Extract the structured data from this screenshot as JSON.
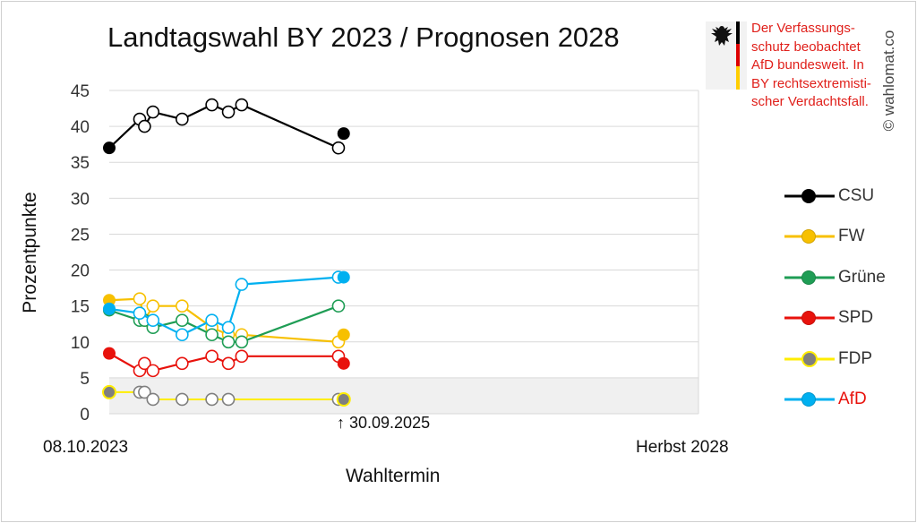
{
  "title": "Landtagswahl BY 2023 / Prognosen 2028",
  "chart_data": {
    "type": "line",
    "title": "Landtagswahl BY 2023 / Prognosen 2028",
    "xlabel": "Wahltermin",
    "ylabel": "Prozentpunkte",
    "ylim": [
      0,
      45
    ],
    "yticks": [
      "0",
      "5",
      "10",
      "15",
      "20",
      "25",
      "30",
      "35",
      "40",
      "45"
    ],
    "x_range": [
      "2023-10-08",
      "2028-10-01"
    ],
    "x_start_label": "08.10.2023",
    "x_end_label": "Herbst 2028",
    "grid": true,
    "shaded_band": [
      0,
      5
    ],
    "marker": {
      "date": "2025-09-30",
      "label": "↑ 30.09.2025"
    },
    "legend_position": "right",
    "series": [
      {
        "name": "CSU",
        "color": "#000000",
        "points": [
          [
            "2023-10-08",
            37.0,
            "result"
          ],
          [
            "2024-01-10",
            41.0,
            "poll"
          ],
          [
            "2024-01-25",
            40.0,
            "poll"
          ],
          [
            "2024-02-20",
            42.0,
            "poll"
          ],
          [
            "2024-05-20",
            41.0,
            "poll"
          ],
          [
            "2024-08-20",
            43.0,
            "poll"
          ],
          [
            "2024-10-10",
            42.0,
            "poll"
          ],
          [
            "2024-11-20",
            43.0,
            "poll"
          ],
          [
            "2025-09-15",
            37.0,
            "poll"
          ]
        ],
        "forecast": [
          "2025-10-01",
          39.0
        ]
      },
      {
        "name": "FW",
        "color": "#f7c000",
        "points": [
          [
            "2023-10-08",
            15.8,
            "result"
          ],
          [
            "2024-01-10",
            16.0,
            "poll"
          ],
          [
            "2024-01-25",
            13.0,
            "poll"
          ],
          [
            "2024-02-20",
            15.0,
            "poll"
          ],
          [
            "2024-05-20",
            15.0,
            "poll"
          ],
          [
            "2024-08-20",
            12.0,
            "poll"
          ],
          [
            "2024-10-10",
            11.0,
            "poll"
          ],
          [
            "2024-11-20",
            11.0,
            "poll"
          ],
          [
            "2025-09-15",
            10.0,
            "poll"
          ]
        ],
        "forecast": [
          "2025-10-01",
          11.0
        ]
      },
      {
        "name": "Grüne",
        "color": "#1f9d55",
        "points": [
          [
            "2023-10-08",
            14.4,
            "result"
          ],
          [
            "2024-01-10",
            13.0,
            "poll"
          ],
          [
            "2024-01-25",
            13.0,
            "poll"
          ],
          [
            "2024-02-20",
            12.0,
            "poll"
          ],
          [
            "2024-05-20",
            13.0,
            "poll"
          ],
          [
            "2024-08-20",
            11.0,
            "poll"
          ],
          [
            "2024-10-10",
            10.0,
            "poll"
          ],
          [
            "2024-11-20",
            10.0,
            "poll"
          ],
          [
            "2025-09-15",
            15.0,
            "poll"
          ]
        ],
        "forecast": null
      },
      {
        "name": "SPD",
        "color": "#e8120c",
        "points": [
          [
            "2023-10-08",
            8.4,
            "result"
          ],
          [
            "2024-01-10",
            6.0,
            "poll"
          ],
          [
            "2024-01-25",
            7.0,
            "poll"
          ],
          [
            "2024-02-20",
            6.0,
            "poll"
          ],
          [
            "2024-05-20",
            7.0,
            "poll"
          ],
          [
            "2024-08-20",
            8.0,
            "poll"
          ],
          [
            "2024-10-10",
            7.0,
            "poll"
          ],
          [
            "2024-11-20",
            8.0,
            "poll"
          ],
          [
            "2025-09-15",
            8.0,
            "poll"
          ]
        ],
        "forecast": [
          "2025-10-01",
          7.0
        ]
      },
      {
        "name": "FDP",
        "color": "#ffed00",
        "points": [
          [
            "2023-10-08",
            3.0,
            "result"
          ],
          [
            "2024-01-10",
            3.0,
            "poll"
          ],
          [
            "2024-01-25",
            3.0,
            "poll"
          ],
          [
            "2024-02-20",
            2.0,
            "poll"
          ],
          [
            "2024-05-20",
            2.0,
            "poll"
          ],
          [
            "2024-08-20",
            2.0,
            "poll"
          ],
          [
            "2024-10-10",
            2.0,
            "poll"
          ],
          [
            "2025-09-15",
            2.0,
            "poll"
          ]
        ],
        "forecast": [
          "2025-10-01",
          2.0
        ]
      },
      {
        "name": "AfD",
        "color": "#00b0f0",
        "points": [
          [
            "2023-10-08",
            14.6,
            "result"
          ],
          [
            "2024-01-10",
            14.0,
            "poll"
          ],
          [
            "2024-02-20",
            13.0,
            "poll"
          ],
          [
            "2024-05-20",
            11.0,
            "poll"
          ],
          [
            "2024-08-20",
            13.0,
            "poll"
          ],
          [
            "2024-10-10",
            12.0,
            "poll"
          ],
          [
            "2024-11-20",
            18.0,
            "poll"
          ],
          [
            "2025-09-15",
            19.0,
            "poll"
          ]
        ],
        "forecast": [
          "2025-10-01",
          19.0
        ]
      }
    ]
  },
  "legend": [
    {
      "name": "CSU",
      "color": "#000000",
      "dot": "#000000",
      "text_color": "#333333"
    },
    {
      "name": "FW",
      "color": "#f7c000",
      "dot": "#f7c000",
      "text_color": "#333333"
    },
    {
      "name": "Grüne",
      "color": "#1f9d55",
      "dot": "#1f9d55",
      "text_color": "#333333"
    },
    {
      "name": "SPD",
      "color": "#e8120c",
      "dot": "#e8120c",
      "text_color": "#333333"
    },
    {
      "name": "FDP",
      "color": "#ffed00",
      "dot": "#7f7f7f",
      "text_color": "#333333"
    },
    {
      "name": "AfD",
      "color": "#00b0f0",
      "dot": "#00b0f0",
      "text_color": "#e8120c"
    }
  ],
  "note": {
    "lines": [
      "Der Verfassungs-",
      "schutz beobachtet",
      "AfD bundesweit. In",
      "BY rechtsextremisti-",
      "scher Verdachtsfall."
    ],
    "color": "#e0201b"
  },
  "emblem": "german-eagle-and-flag-icon",
  "copyright": "© wahlomat.co"
}
